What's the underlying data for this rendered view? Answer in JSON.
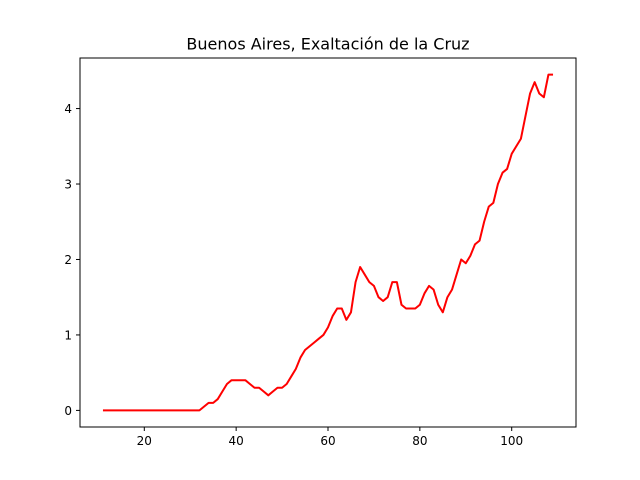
{
  "chart_data": {
    "type": "line",
    "title": "Buenos Aires, Exaltación de la Cruz",
    "xlabel": "",
    "ylabel": "",
    "xlim": [
      6,
      114
    ],
    "ylim": [
      -0.22,
      4.67
    ],
    "xticks": [
      20,
      40,
      60,
      80,
      100
    ],
    "yticks": [
      0,
      1,
      2,
      3,
      4
    ],
    "grid": false,
    "series": [
      {
        "color": "#ff0000",
        "x": [
          11,
          12,
          13,
          14,
          15,
          16,
          17,
          18,
          19,
          20,
          21,
          22,
          23,
          24,
          25,
          26,
          27,
          28,
          29,
          30,
          31,
          32,
          33,
          34,
          35,
          36,
          37,
          38,
          39,
          40,
          41,
          42,
          43,
          44,
          45,
          46,
          47,
          48,
          49,
          50,
          51,
          52,
          53,
          54,
          55,
          56,
          57,
          58,
          59,
          60,
          61,
          62,
          63,
          64,
          65,
          66,
          67,
          68,
          69,
          70,
          71,
          72,
          73,
          74,
          75,
          76,
          77,
          78,
          79,
          80,
          81,
          82,
          83,
          84,
          85,
          86,
          87,
          88,
          89,
          90,
          91,
          92,
          93,
          94,
          95,
          96,
          97,
          98,
          99,
          100,
          101,
          102,
          103,
          104,
          105,
          106,
          107,
          108,
          109
        ],
        "y": [
          0,
          0,
          0,
          0,
          0,
          0,
          0,
          0,
          0,
          0,
          0,
          0,
          0,
          0,
          0,
          0,
          0,
          0,
          0,
          0,
          0,
          0,
          0.05,
          0.1,
          0.1,
          0.15,
          0.25,
          0.35,
          0.4,
          0.4,
          0.4,
          0.4,
          0.35,
          0.3,
          0.3,
          0.25,
          0.2,
          0.25,
          0.3,
          0.3,
          0.35,
          0.45,
          0.55,
          0.7,
          0.8,
          0.85,
          0.9,
          0.95,
          1.0,
          1.1,
          1.25,
          1.35,
          1.35,
          1.2,
          1.3,
          1.7,
          1.9,
          1.8,
          1.7,
          1.65,
          1.5,
          1.45,
          1.5,
          1.7,
          1.7,
          1.4,
          1.35,
          1.35,
          1.35,
          1.4,
          1.55,
          1.65,
          1.6,
          1.4,
          1.3,
          1.5,
          1.6,
          1.8,
          2.0,
          1.95,
          2.05,
          2.2,
          2.25,
          2.5,
          2.7,
          2.75,
          3.0,
          3.15,
          3.2,
          3.4,
          3.5,
          3.6,
          3.9,
          4.2,
          4.35,
          4.2,
          4.15,
          4.45,
          4.45
        ]
      }
    ]
  }
}
